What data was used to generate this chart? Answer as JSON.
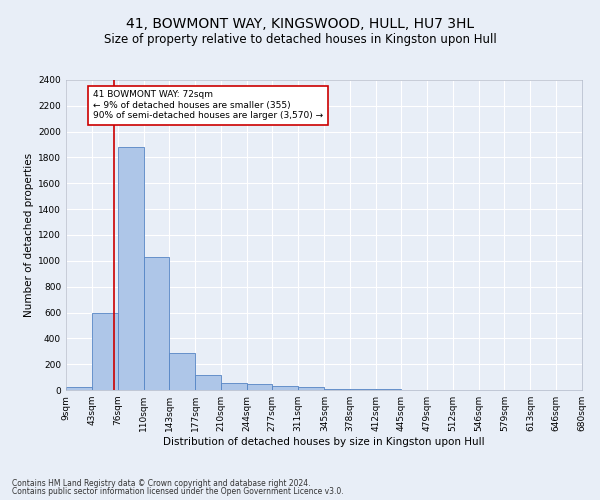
{
  "title": "41, BOWMONT WAY, KINGSWOOD, HULL, HU7 3HL",
  "subtitle": "Size of property relative to detached houses in Kingston upon Hull",
  "xlabel": "Distribution of detached houses by size in Kingston upon Hull",
  "ylabel": "Number of detached properties",
  "footer1": "Contains HM Land Registry data © Crown copyright and database right 2024.",
  "footer2": "Contains public sector information licensed under the Open Government Licence v3.0.",
  "bin_edges": [
    9,
    43,
    76,
    110,
    143,
    177,
    210,
    244,
    277,
    311,
    345,
    378,
    412,
    445,
    479,
    512,
    546,
    579,
    613,
    646,
    680
  ],
  "bar_heights": [
    20,
    600,
    1880,
    1030,
    290,
    120,
    55,
    45,
    30,
    20,
    10,
    5,
    5,
    3,
    2,
    2,
    1,
    1,
    1,
    1
  ],
  "bar_color": "#aec6e8",
  "bar_edge_color": "#5585c5",
  "property_size": 72,
  "annotation_text": "41 BOWMONT WAY: 72sqm\n← 9% of detached houses are smaller (355)\n90% of semi-detached houses are larger (3,570) →",
  "annotation_box_color": "#ffffff",
  "annotation_edge_color": "#cc0000",
  "vline_color": "#cc0000",
  "ylim": [
    0,
    2400
  ],
  "yticks": [
    0,
    200,
    400,
    600,
    800,
    1000,
    1200,
    1400,
    1600,
    1800,
    2000,
    2200,
    2400
  ],
  "bg_color": "#e8eef7",
  "grid_color": "#ffffff",
  "title_fontsize": 10,
  "subtitle_fontsize": 8.5,
  "label_fontsize": 7.5,
  "tick_fontsize": 6.5,
  "footer_fontsize": 5.5
}
